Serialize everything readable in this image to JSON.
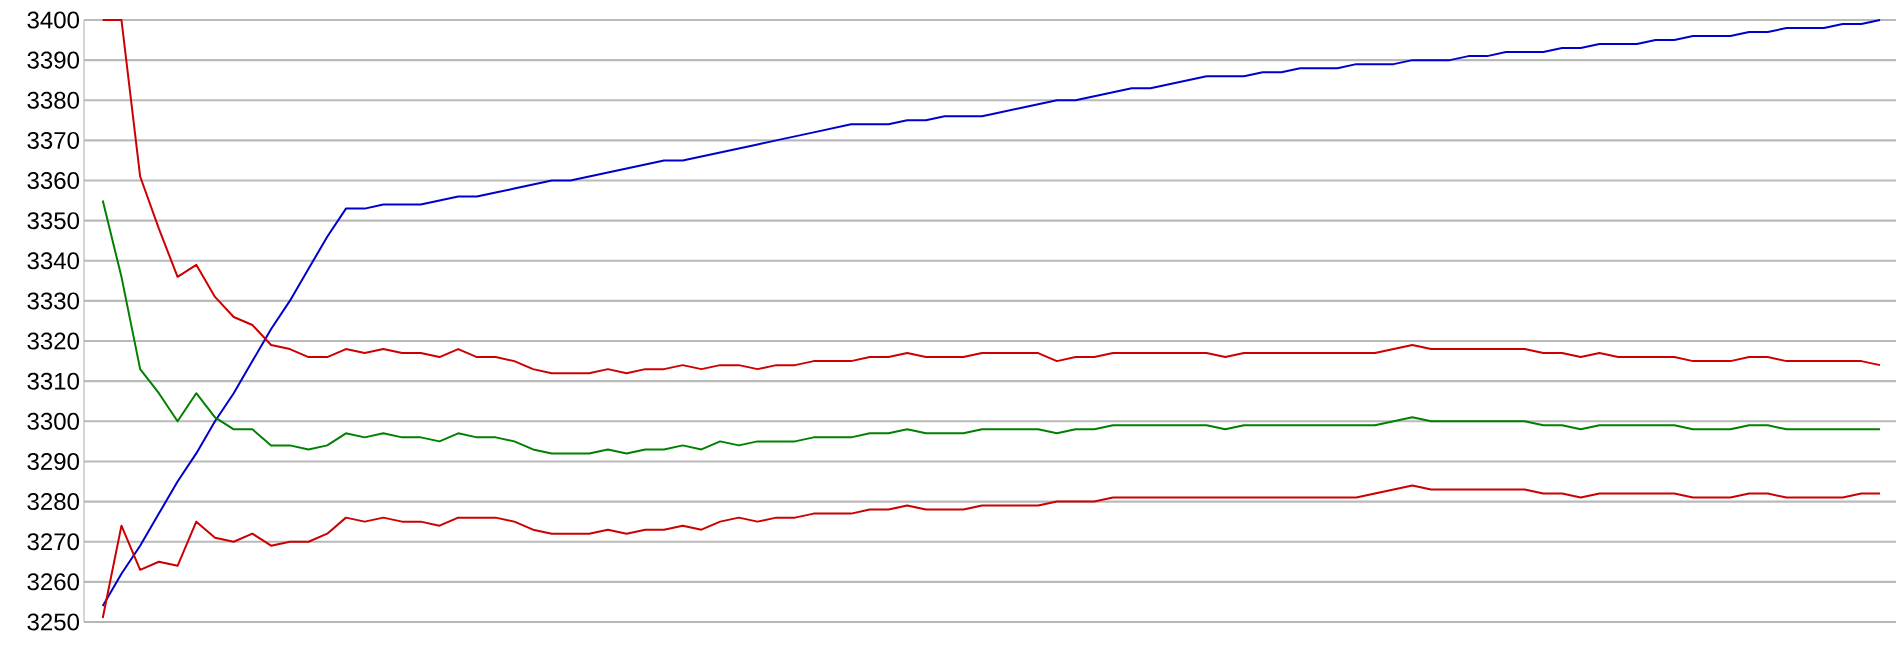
{
  "chart_data": {
    "type": "line",
    "categories": [
      null,
      null,
      null,
      null,
      null,
      null,
      null,
      null,
      null,
      null,
      null,
      null,
      null,
      null,
      null,
      null,
      null,
      null,
      null,
      null,
      null,
      null,
      null,
      null,
      null,
      null,
      null,
      null,
      null,
      null,
      null,
      null,
      null,
      null,
      null,
      null,
      null,
      null,
      null,
      null,
      null,
      null,
      null,
      null,
      null,
      null,
      null,
      null,
      null,
      null,
      null,
      null,
      null,
      null,
      null,
      null,
      null,
      null,
      null,
      null,
      null,
      null,
      null,
      null,
      null,
      null,
      null,
      null,
      null,
      null,
      null,
      null,
      null,
      null,
      null,
      null,
      null,
      null,
      null,
      null,
      null,
      null,
      null,
      null,
      null,
      null,
      null,
      null,
      null,
      null,
      null,
      null,
      null,
      null,
      null,
      null
    ],
    "ylim": [
      3250,
      3400
    ],
    "yticks": [
      3250,
      3260,
      3270,
      3280,
      3290,
      3300,
      3310,
      3320,
      3330,
      3340,
      3350,
      3360,
      3370,
      3380,
      3390,
      3400
    ],
    "grid": "y",
    "tick_labels": "y",
    "series": [
      {
        "color": "#0000cc",
        "values": [
          3254,
          3262,
          3269,
          3277,
          3285,
          3292,
          3300,
          3307,
          3315,
          3323,
          3330,
          3338,
          3346,
          3353,
          3353,
          3354,
          3354,
          3354,
          3355,
          3356,
          3356,
          3357,
          3358,
          3359,
          3360,
          3360,
          3361,
          3362,
          3363,
          3364,
          3365,
          3365,
          3366,
          3367,
          3368,
          3369,
          3370,
          3371,
          3372,
          3373,
          3374,
          3374,
          3374,
          3375,
          3375,
          3376,
          3376,
          3376,
          3377,
          3378,
          3379,
          3380,
          3380,
          3381,
          3382,
          3383,
          3383,
          3384,
          3385,
          3386,
          3386,
          3386,
          3387,
          3387,
          3388,
          3388,
          3388,
          3389,
          3389,
          3389,
          3390,
          3390,
          3390,
          3391,
          3391,
          3392,
          3392,
          3392,
          3393,
          3393,
          3394,
          3394,
          3394,
          3395,
          3395,
          3396,
          3396,
          3396,
          3397,
          3397,
          3398,
          3398,
          3398,
          3399,
          3399,
          3400
        ]
      },
      {
        "color": "#cc0000",
        "values": [
          3400,
          3400,
          3361,
          3348,
          3336,
          3339,
          3331,
          3326,
          3324,
          3319,
          3318,
          3316,
          3316,
          3318,
          3317,
          3318,
          3317,
          3317,
          3316,
          3318,
          3316,
          3316,
          3315,
          3313,
          3312,
          3312,
          3312,
          3313,
          3312,
          3313,
          3313,
          3314,
          3313,
          3314,
          3314,
          3313,
          3314,
          3314,
          3315,
          3315,
          3315,
          3316,
          3316,
          3317,
          3316,
          3316,
          3316,
          3317,
          3317,
          3317,
          3317,
          3315,
          3316,
          3316,
          3317,
          3317,
          3317,
          3317,
          3317,
          3317,
          3316,
          3317,
          3317,
          3317,
          3317,
          3317,
          3317,
          3317,
          3317,
          3318,
          3319,
          3318,
          3318,
          3318,
          3318,
          3318,
          3318,
          3317,
          3317,
          3316,
          3317,
          3316,
          3316,
          3316,
          3316,
          3315,
          3315,
          3315,
          3316,
          3316,
          3315,
          3315,
          3315,
          3315,
          3315,
          3314
        ]
      },
      {
        "color": "#008000",
        "values": [
          3355,
          3336,
          3313,
          3307,
          3300,
          3307,
          3301,
          3298,
          3298,
          3294,
          3294,
          3293,
          3294,
          3297,
          3296,
          3297,
          3296,
          3296,
          3295,
          3297,
          3296,
          3296,
          3295,
          3293,
          3292,
          3292,
          3292,
          3293,
          3292,
          3293,
          3293,
          3294,
          3293,
          3295,
          3294,
          3295,
          3295,
          3295,
          3296,
          3296,
          3296,
          3297,
          3297,
          3298,
          3297,
          3297,
          3297,
          3298,
          3298,
          3298,
          3298,
          3297,
          3298,
          3298,
          3299,
          3299,
          3299,
          3299,
          3299,
          3299,
          3298,
          3299,
          3299,
          3299,
          3299,
          3299,
          3299,
          3299,
          3299,
          3300,
          3301,
          3300,
          3300,
          3300,
          3300,
          3300,
          3300,
          3299,
          3299,
          3298,
          3299,
          3299,
          3299,
          3299,
          3299,
          3298,
          3298,
          3298,
          3299,
          3299,
          3298,
          3298,
          3298,
          3298,
          3298,
          3298
        ]
      },
      {
        "color": "#cc0000",
        "values": [
          3251,
          3274,
          3263,
          3265,
          3264,
          3275,
          3271,
          3270,
          3272,
          3269,
          3270,
          3270,
          3272,
          3276,
          3275,
          3276,
          3275,
          3275,
          3274,
          3276,
          3276,
          3276,
          3275,
          3273,
          3272,
          3272,
          3272,
          3273,
          3272,
          3273,
          3273,
          3274,
          3273,
          3275,
          3276,
          3275,
          3276,
          3276,
          3277,
          3277,
          3277,
          3278,
          3278,
          3279,
          3278,
          3278,
          3278,
          3279,
          3279,
          3279,
          3279,
          3280,
          3280,
          3280,
          3281,
          3281,
          3281,
          3281,
          3281,
          3281,
          3281,
          3281,
          3281,
          3281,
          3281,
          3281,
          3281,
          3281,
          3282,
          3283,
          3284,
          3283,
          3283,
          3283,
          3283,
          3283,
          3283,
          3282,
          3282,
          3281,
          3282,
          3282,
          3282,
          3282,
          3282,
          3281,
          3281,
          3281,
          3282,
          3282,
          3281,
          3281,
          3281,
          3281,
          3282,
          3282
        ]
      }
    ]
  }
}
